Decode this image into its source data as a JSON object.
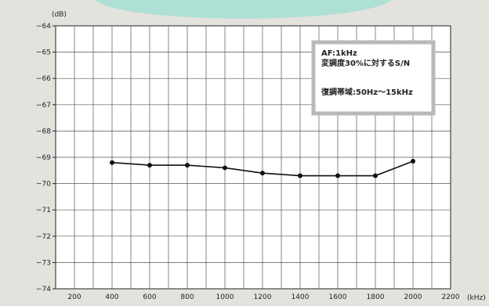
{
  "chart_data": {
    "type": "line",
    "unit_y": "(dB)",
    "unit_x": "(kHz)",
    "x_ticks": [
      200,
      400,
      600,
      800,
      1000,
      1200,
      1400,
      1600,
      1800,
      2000,
      2200
    ],
    "y_ticks": [
      -64,
      -65,
      -66,
      -67,
      -68,
      -69,
      -70,
      -71,
      -72,
      -73,
      -74
    ],
    "xlim": [
      100,
      2200
    ],
    "ylim": [
      -74,
      -64
    ],
    "grid": true,
    "minor_x_step": 100,
    "series": [
      {
        "x": [
          400,
          600,
          800,
          1000,
          1200,
          1400,
          1600,
          1800,
          2000
        ],
        "y": [
          -69.2,
          -69.3,
          -69.3,
          -69.4,
          -69.6,
          -69.7,
          -69.7,
          -69.7,
          -69.15
        ]
      }
    ],
    "legend_box": {
      "line1": "AF:1kHz",
      "line2": "変調度30%に対するS/N",
      "line3": "復調帯域:50Hz～15kHz"
    },
    "colors": {
      "background": "#e4e2dd",
      "plot_bg": "#ffffff",
      "grid": "#555555",
      "line": "#111111",
      "banner": "#aee0d6",
      "box_border": "#b9b9b9"
    }
  }
}
